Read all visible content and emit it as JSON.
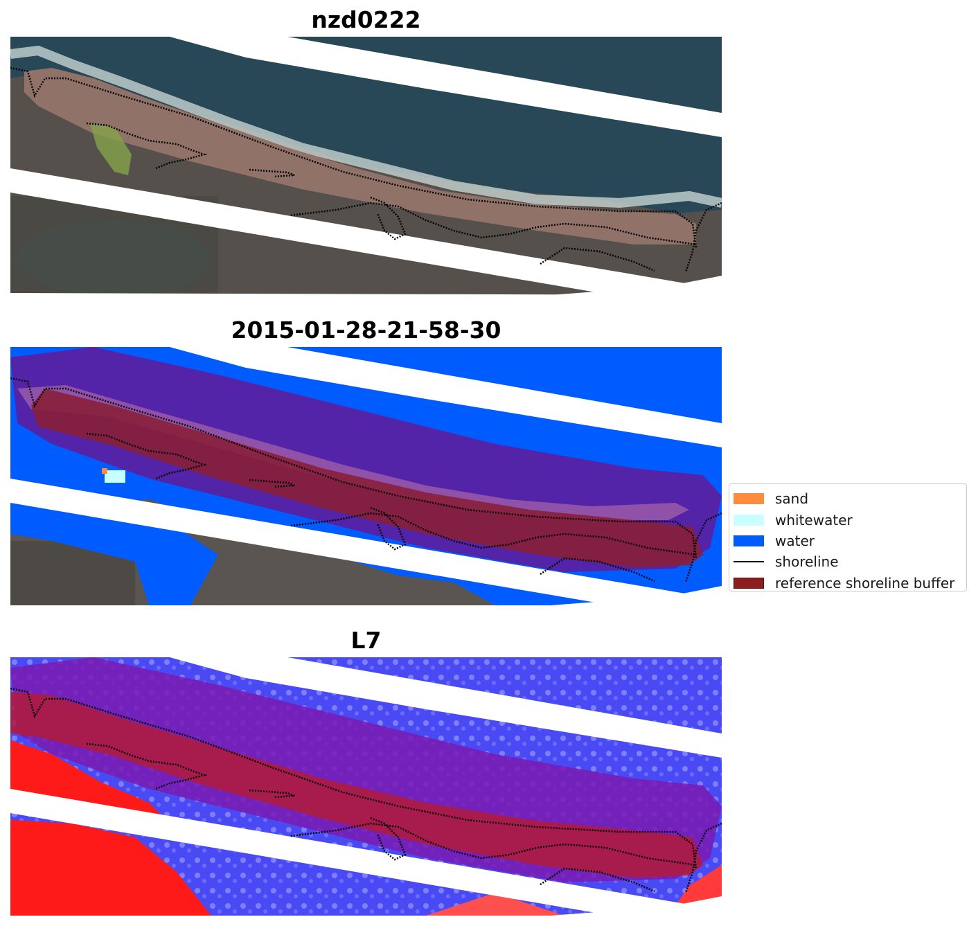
{
  "panels": [
    {
      "title": "nzd0222",
      "kind": "rgb"
    },
    {
      "title": "2015-01-28-21-58-30",
      "kind": "classified"
    },
    {
      "title": "L7",
      "kind": "index"
    }
  ],
  "legend": {
    "items": [
      {
        "label": "sand",
        "color": "#ff8c3c",
        "type": "patch"
      },
      {
        "label": "whitewater",
        "color": "#c8ffff",
        "type": "patch"
      },
      {
        "label": "water",
        "color": "#005cff",
        "type": "patch"
      },
      {
        "label": "shoreline",
        "color": "#000000",
        "type": "line"
      },
      {
        "label": "reference shoreline buffer",
        "color": "#8b1f1f",
        "type": "patch"
      }
    ]
  },
  "colors": {
    "ocean": "#2a4a5a",
    "land": "#5a504a",
    "beach": "#9c7e76",
    "surf": "#d8e6e4",
    "lagoon": "#8faf4c",
    "water_class": "#005cff",
    "buffer_overlay": "#7a1a9a",
    "index_red": "#ff1a1a",
    "index_blue": "#5050ff"
  }
}
